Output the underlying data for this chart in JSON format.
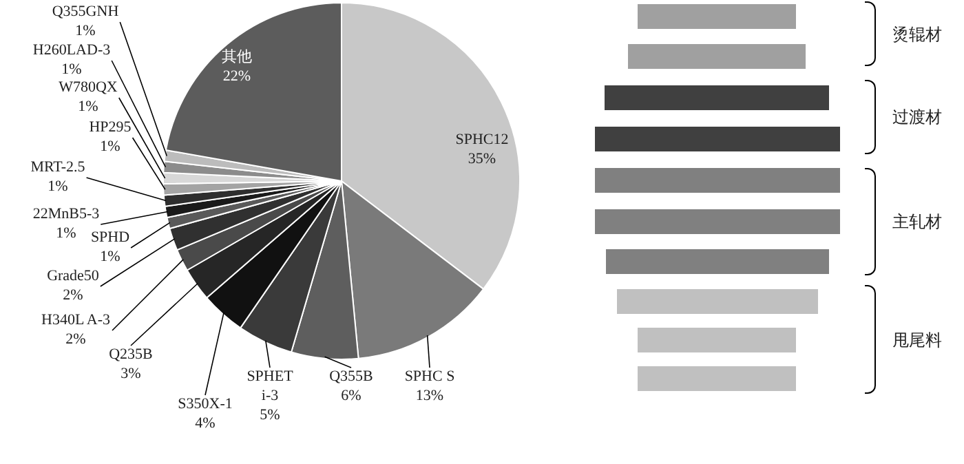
{
  "chart_data": [
    {
      "type": "pie",
      "categories": [
        "SPHC12",
        "SPHC S",
        "Q355B",
        "SPHET i-3",
        "S350X-1",
        "Q235B",
        "H340L A-3",
        "Grade50",
        "SPHD",
        "22MnB5-3",
        "MRT-2.5",
        "HP295",
        "W780QX",
        "H260LAD-3",
        "Q355GNH",
        "其他"
      ],
      "values": [
        35,
        13,
        6,
        5,
        4,
        3,
        2,
        2,
        1,
        1,
        1,
        1,
        1,
        1,
        1,
        22
      ],
      "value_labels": [
        "35%",
        "13%",
        "6%",
        "5%",
        "4%",
        "3%",
        "2%",
        "2%",
        "1%",
        "1%",
        "1%",
        "1%",
        "1%",
        "1%",
        "1%",
        "22%"
      ],
      "colors": [
        "#c8c8c8",
        "#7a7a7a",
        "#5e5e5e",
        "#3a3a3a",
        "#111111",
        "#262626",
        "#4a4a4a",
        "#303030",
        "#5a5a5a",
        "#1a1a1a",
        "#2e2e2e",
        "#a4a4a4",
        "#d8d8d8",
        "#8c8c8c",
        "#bcbcbc",
        "#5c5c5c"
      ],
      "legend": false
    },
    {
      "type": "other",
      "annotations": [
        "烫辊材",
        "过渡材",
        "主轧材",
        "甩尾料"
      ]
    }
  ]
}
